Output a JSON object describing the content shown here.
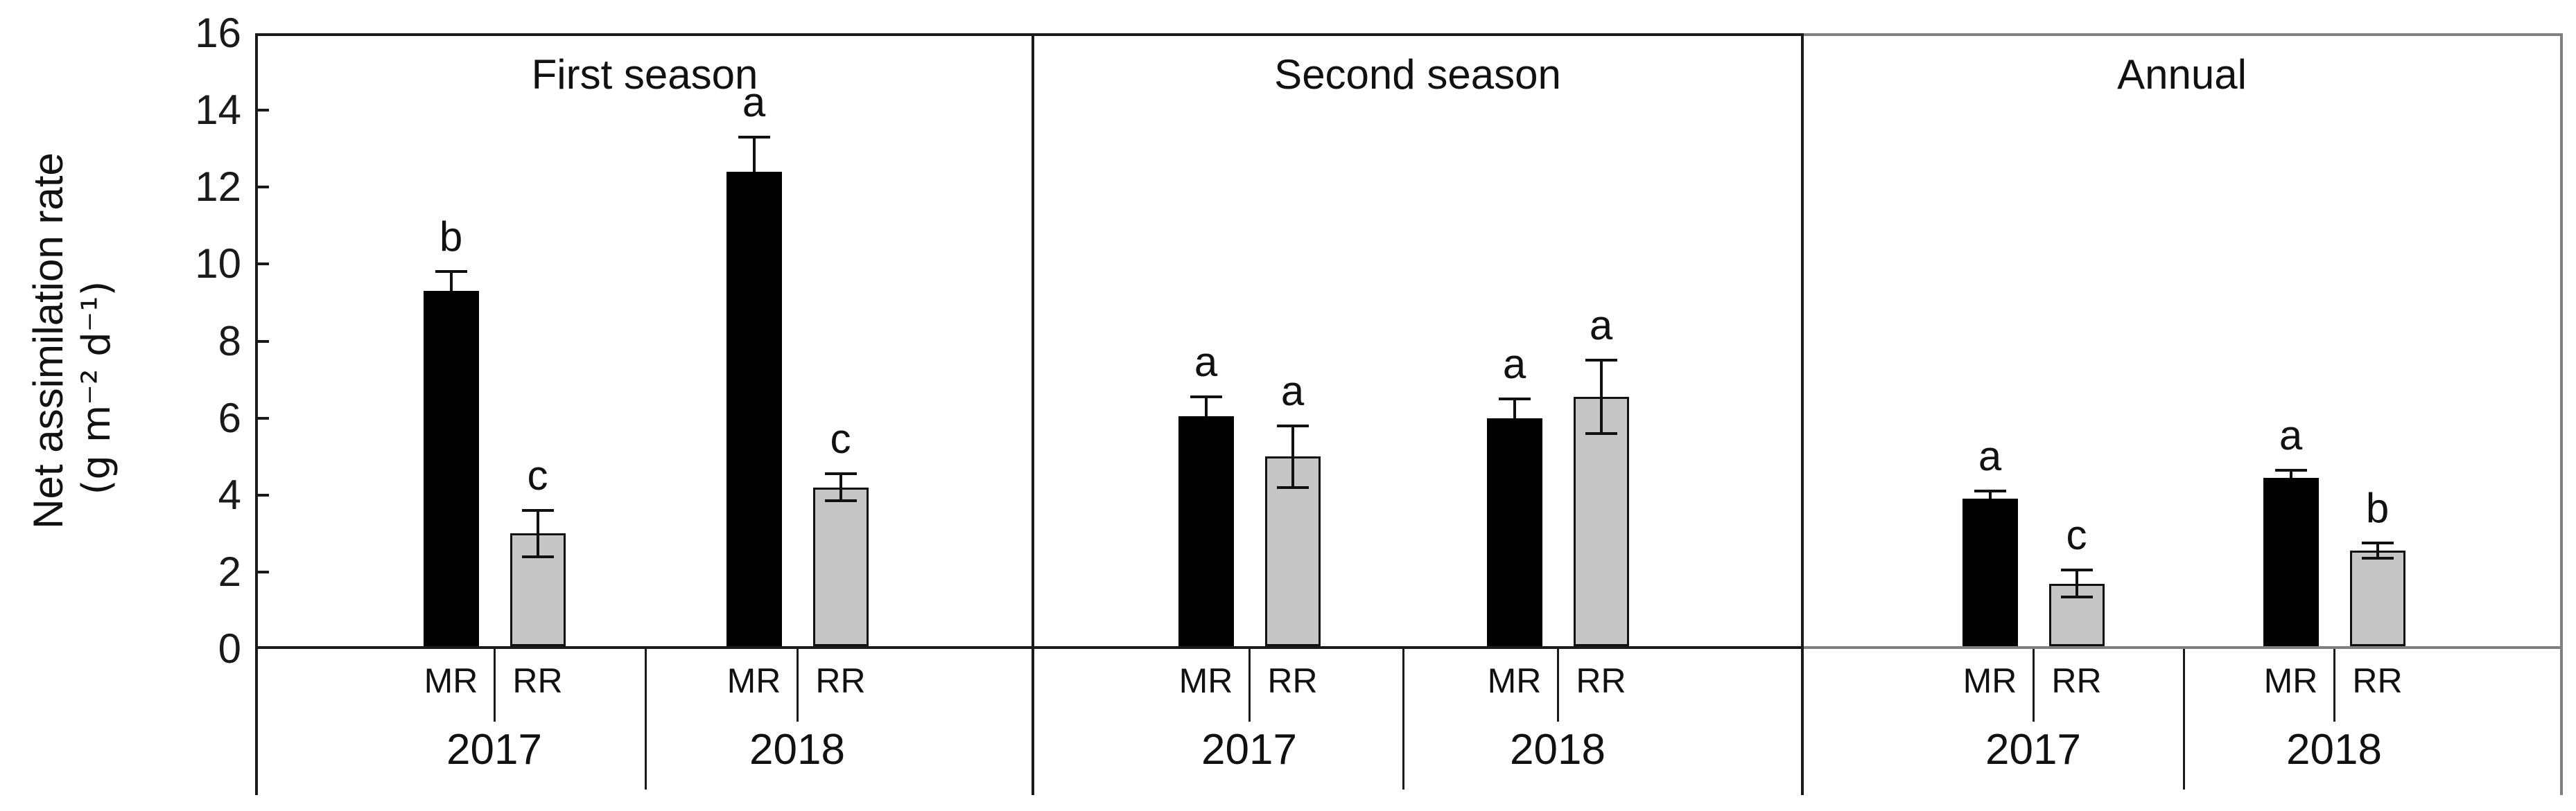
{
  "figure": {
    "ylabel_line1": "Net assimilation rate",
    "ylabel_line2": "(g m⁻² d⁻¹)"
  },
  "chart_data": {
    "type": "bar",
    "title": "",
    "xlabel": "",
    "ylabel": "Net assimilation rate (g m⁻² d⁻¹)",
    "ylim": [
      0,
      16
    ],
    "yticks": [
      0,
      2,
      4,
      6,
      8,
      10,
      12,
      14,
      16
    ],
    "grid": false,
    "legend": "none",
    "series_colors": {
      "MR": "#000000",
      "RR": "#c6c6c6"
    },
    "panels": [
      {
        "title": "First season",
        "groups": [
          {
            "year": "2017",
            "bars": [
              {
                "treatment": "MR",
                "value": 9.3,
                "err_up": 0.5,
                "err_down": null,
                "letter": "b"
              },
              {
                "treatment": "RR",
                "value": 3.0,
                "err_up": 0.6,
                "err_down": 0.6,
                "letter": "c"
              }
            ]
          },
          {
            "year": "2018",
            "bars": [
              {
                "treatment": "MR",
                "value": 12.4,
                "err_up": 0.9,
                "err_down": null,
                "letter": "a"
              },
              {
                "treatment": "RR",
                "value": 4.2,
                "err_up": 0.35,
                "err_down": 0.35,
                "letter": "c"
              }
            ]
          }
        ]
      },
      {
        "title": "Second season",
        "groups": [
          {
            "year": "2017",
            "bars": [
              {
                "treatment": "MR",
                "value": 6.05,
                "err_up": 0.5,
                "err_down": null,
                "letter": "a"
              },
              {
                "treatment": "RR",
                "value": 5.0,
                "err_up": 0.8,
                "err_down": 0.8,
                "letter": "a"
              }
            ]
          },
          {
            "year": "2018",
            "bars": [
              {
                "treatment": "MR",
                "value": 6.0,
                "err_up": 0.5,
                "err_down": null,
                "letter": "a"
              },
              {
                "treatment": "RR",
                "value": 6.55,
                "err_up": 0.95,
                "err_down": 0.95,
                "letter": "a"
              }
            ]
          }
        ]
      },
      {
        "title": "Annual",
        "groups": [
          {
            "year": "2017",
            "bars": [
              {
                "treatment": "MR",
                "value": 3.9,
                "err_up": 0.2,
                "err_down": null,
                "letter": "a"
              },
              {
                "treatment": "RR",
                "value": 1.7,
                "err_up": 0.35,
                "err_down": 0.35,
                "letter": "c"
              }
            ]
          },
          {
            "year": "2018",
            "bars": [
              {
                "treatment": "MR",
                "value": 4.45,
                "err_up": 0.2,
                "err_down": null,
                "letter": "a"
              },
              {
                "treatment": "RR",
                "value": 2.55,
                "err_up": 0.2,
                "err_down": 0.2,
                "letter": "b"
              }
            ]
          }
        ]
      }
    ]
  }
}
